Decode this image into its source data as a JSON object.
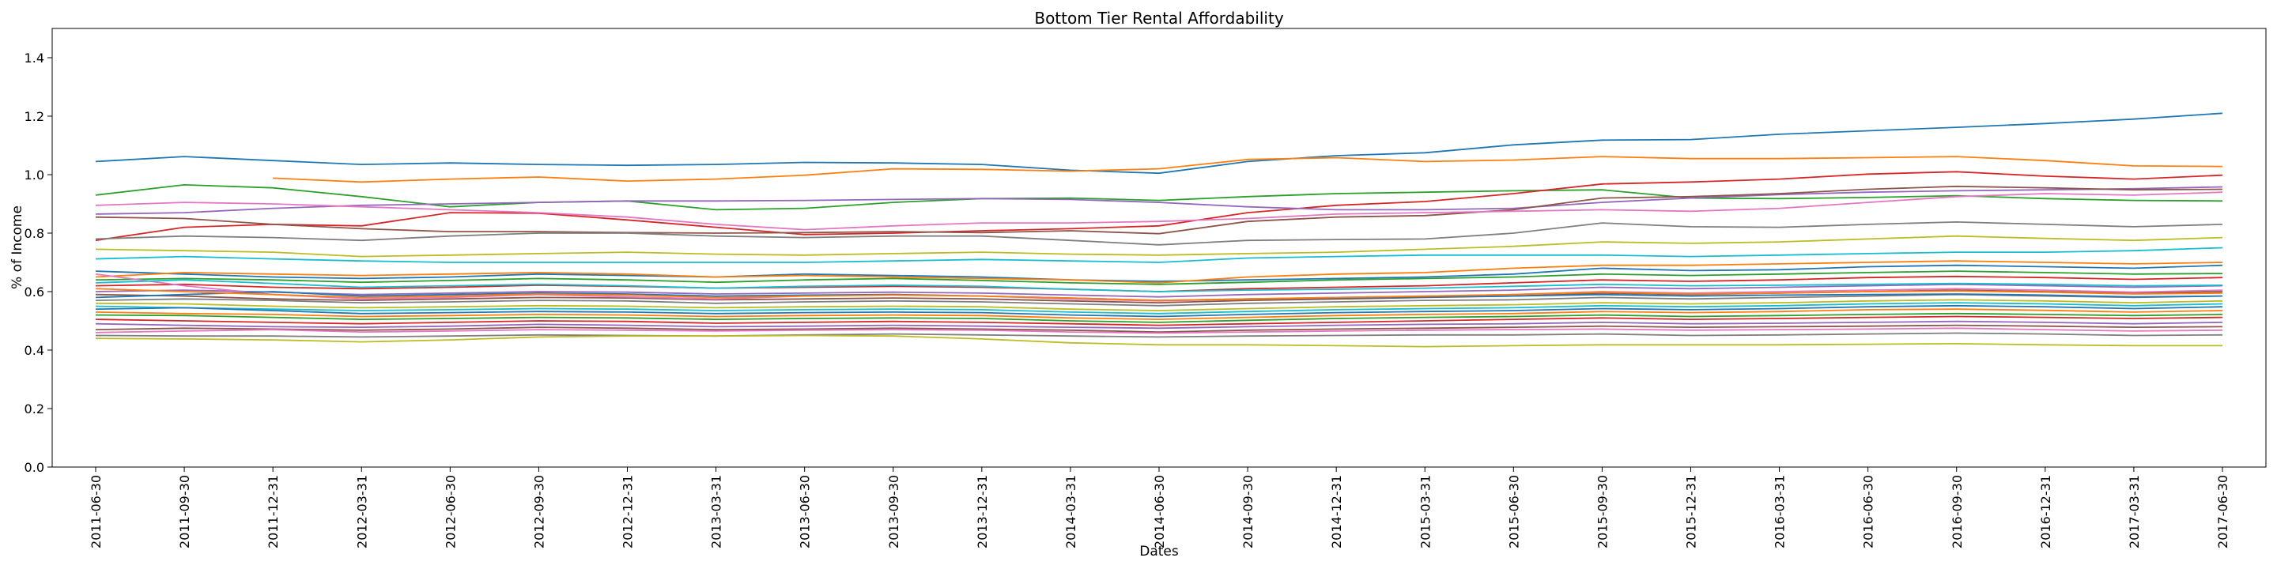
{
  "chart_data": {
    "type": "line",
    "title": "Bottom Tier Rental Affordability",
    "xlabel": "Dates",
    "ylabel": "% of Income",
    "ylim": [
      0.0,
      1.5
    ],
    "yticks": [
      0.0,
      0.2,
      0.4,
      0.6,
      0.8,
      1.0,
      1.2,
      1.4
    ],
    "ytick_labels": [
      "0.0",
      "0.2",
      "0.4",
      "0.6",
      "0.8",
      "1.0",
      "1.2",
      "1.4"
    ],
    "x": [
      "2011-06-30",
      "2011-09-30",
      "2011-12-31",
      "2012-03-31",
      "2012-06-30",
      "2012-09-30",
      "2012-12-31",
      "2013-03-31",
      "2013-06-30",
      "2013-09-30",
      "2013-12-31",
      "2014-03-31",
      "2014-06-30",
      "2014-09-30",
      "2014-12-31",
      "2015-03-31",
      "2015-06-30",
      "2015-09-30",
      "2015-12-31",
      "2016-03-31",
      "2016-06-30",
      "2016-09-30",
      "2016-12-31",
      "2017-03-31",
      "2017-06-30"
    ],
    "legend": "none",
    "grid": false,
    "series_colors": [
      "#1f77b4",
      "#ff7f0e",
      "#2ca02c",
      "#d62728",
      "#9467bd",
      "#8c564b",
      "#e377c2",
      "#7f7f7f",
      "#bcbd22",
      "#17becf"
    ],
    "series": [
      {
        "values": [
          1.045,
          1.062,
          1.048,
          1.035,
          1.04,
          1.035,
          1.032,
          1.035,
          1.042,
          1.04,
          1.035,
          1.015,
          1.005,
          1.045,
          1.065,
          1.075,
          1.102,
          1.118,
          1.12,
          1.138,
          1.15,
          1.162,
          1.175,
          1.19,
          1.21
        ]
      },
      {
        "values": [
          null,
          null,
          0.988,
          0.975,
          0.985,
          0.992,
          0.978,
          0.985,
          0.998,
          1.02,
          1.018,
          1.012,
          1.02,
          1.052,
          1.058,
          1.045,
          1.05,
          1.062,
          1.055,
          1.055,
          1.058,
          1.062,
          1.048,
          1.03,
          1.028
        ]
      },
      {
        "values": [
          0.93,
          0.965,
          0.955,
          0.925,
          0.89,
          0.905,
          0.91,
          0.88,
          0.885,
          0.905,
          0.918,
          0.92,
          0.912,
          0.925,
          0.935,
          0.94,
          0.945,
          0.948,
          0.92,
          0.918,
          0.922,
          0.928,
          0.918,
          0.912,
          0.91
        ]
      },
      {
        "values": [
          0.775,
          0.82,
          0.83,
          0.825,
          0.87,
          0.868,
          0.845,
          0.82,
          0.795,
          0.8,
          0.808,
          0.815,
          0.825,
          0.87,
          0.895,
          0.908,
          0.935,
          0.968,
          0.975,
          0.985,
          1.002,
          1.01,
          0.995,
          0.985,
          0.998
        ]
      },
      {
        "values": [
          0.865,
          0.87,
          0.885,
          0.895,
          0.9,
          0.905,
          0.91,
          0.91,
          0.912,
          0.915,
          0.918,
          0.915,
          0.905,
          0.89,
          0.88,
          0.88,
          0.885,
          0.905,
          0.92,
          0.932,
          0.94,
          0.945,
          0.948,
          0.952,
          0.958
        ]
      },
      {
        "values": [
          0.855,
          0.85,
          0.83,
          0.815,
          0.805,
          0.805,
          0.802,
          0.8,
          0.802,
          0.805,
          0.802,
          0.808,
          0.798,
          0.84,
          0.855,
          0.86,
          0.88,
          0.92,
          0.925,
          0.935,
          0.95,
          0.96,
          0.955,
          0.948,
          0.95
        ]
      },
      {
        "values": [
          0.895,
          0.905,
          0.9,
          0.89,
          0.88,
          0.87,
          0.855,
          0.83,
          0.812,
          0.825,
          0.835,
          0.835,
          0.84,
          0.85,
          0.865,
          0.87,
          0.875,
          0.88,
          0.875,
          0.885,
          0.905,
          0.925,
          0.935,
          0.93,
          0.94
        ]
      },
      {
        "values": [
          0.78,
          0.79,
          0.785,
          0.775,
          0.79,
          0.8,
          0.8,
          0.79,
          0.785,
          0.79,
          0.79,
          0.775,
          0.76,
          0.775,
          0.778,
          0.78,
          0.8,
          0.835,
          0.822,
          0.82,
          0.83,
          0.838,
          0.83,
          0.822,
          0.83
        ]
      },
      {
        "values": [
          0.745,
          0.74,
          0.735,
          0.72,
          0.725,
          0.73,
          0.735,
          0.728,
          0.725,
          0.73,
          0.735,
          0.728,
          0.725,
          0.73,
          0.735,
          0.745,
          0.755,
          0.77,
          0.765,
          0.77,
          0.78,
          0.79,
          0.782,
          0.775,
          0.785
        ]
      },
      {
        "values": [
          0.712,
          0.72,
          0.712,
          0.705,
          0.7,
          0.7,
          0.7,
          0.7,
          0.7,
          0.705,
          0.71,
          0.705,
          0.7,
          0.715,
          0.72,
          0.725,
          0.725,
          0.725,
          0.72,
          0.725,
          0.73,
          0.735,
          0.735,
          0.74,
          0.75
        ]
      },
      {
        "values": [
          0.67,
          0.66,
          0.65,
          0.645,
          0.65,
          0.66,
          0.655,
          0.65,
          0.66,
          0.655,
          0.65,
          0.64,
          0.635,
          0.64,
          0.645,
          0.65,
          0.66,
          0.68,
          0.672,
          0.675,
          0.685,
          0.69,
          0.685,
          0.68,
          0.69
        ]
      },
      {
        "values": [
          0.65,
          0.665,
          0.66,
          0.655,
          0.66,
          0.665,
          0.66,
          0.65,
          0.655,
          0.65,
          0.645,
          0.64,
          0.63,
          0.65,
          0.66,
          0.665,
          0.68,
          0.69,
          0.69,
          0.695,
          0.7,
          0.705,
          0.7,
          0.695,
          0.7
        ]
      },
      {
        "values": [
          0.64,
          0.645,
          0.64,
          0.632,
          0.638,
          0.645,
          0.64,
          0.632,
          0.64,
          0.645,
          0.638,
          0.63,
          0.625,
          0.632,
          0.64,
          0.645,
          0.65,
          0.66,
          0.655,
          0.66,
          0.665,
          0.67,
          0.665,
          0.66,
          0.662
        ]
      },
      {
        "values": [
          0.62,
          0.625,
          0.615,
          0.61,
          0.615,
          0.622,
          0.618,
          0.612,
          0.615,
          0.618,
          0.615,
          0.608,
          0.6,
          0.61,
          0.615,
          0.62,
          0.63,
          0.64,
          0.635,
          0.64,
          0.648,
          0.652,
          0.648,
          0.642,
          0.648
        ]
      },
      {
        "values": [
          0.6,
          0.605,
          0.598,
          0.59,
          0.595,
          0.6,
          0.598,
          0.592,
          0.595,
          0.598,
          0.595,
          0.588,
          0.582,
          0.59,
          0.595,
          0.6,
          0.605,
          0.615,
          0.61,
          0.615,
          0.62,
          0.625,
          0.62,
          0.615,
          0.62
        ]
      },
      {
        "values": [
          0.59,
          0.585,
          0.575,
          0.57,
          0.575,
          0.58,
          0.578,
          0.572,
          0.575,
          0.578,
          0.575,
          0.568,
          0.562,
          0.57,
          0.575,
          0.58,
          0.585,
          0.595,
          0.59,
          0.595,
          0.6,
          0.605,
          0.6,
          0.595,
          0.6
        ]
      },
      {
        "values": [
          0.66,
          0.62,
          0.59,
          0.575,
          0.58,
          0.59,
          0.582,
          0.575,
          0.585,
          0.59,
          0.585,
          0.575,
          0.568,
          0.575,
          0.58,
          0.585,
          0.59,
          0.6,
          0.595,
          0.6,
          0.605,
          0.61,
          0.605,
          0.598,
          0.605
        ]
      },
      {
        "values": [
          0.57,
          0.575,
          0.57,
          0.562,
          0.565,
          0.57,
          0.568,
          0.56,
          0.565,
          0.568,
          0.565,
          0.558,
          0.552,
          0.56,
          0.565,
          0.57,
          0.572,
          0.58,
          0.575,
          0.58,
          0.585,
          0.59,
          0.585,
          0.58,
          0.585
        ]
      },
      {
        "values": [
          0.56,
          0.558,
          0.55,
          0.545,
          0.548,
          0.552,
          0.55,
          0.545,
          0.548,
          0.55,
          0.548,
          0.54,
          0.535,
          0.542,
          0.548,
          0.552,
          0.555,
          0.562,
          0.558,
          0.562,
          0.568,
          0.572,
          0.568,
          0.562,
          0.568
        ]
      },
      {
        "values": [
          0.55,
          0.545,
          0.54,
          0.535,
          0.538,
          0.542,
          0.54,
          0.535,
          0.538,
          0.54,
          0.538,
          0.53,
          0.525,
          0.532,
          0.538,
          0.542,
          0.545,
          0.552,
          0.548,
          0.552,
          0.558,
          0.562,
          0.558,
          0.552,
          0.558
        ]
      },
      {
        "values": [
          0.54,
          0.545,
          0.535,
          0.525,
          0.528,
          0.532,
          0.53,
          0.525,
          0.528,
          0.53,
          0.528,
          0.52,
          0.515,
          0.522,
          0.528,
          0.532,
          0.535,
          0.542,
          0.538,
          0.542,
          0.548,
          0.552,
          0.548,
          0.542,
          0.548
        ]
      },
      {
        "values": [
          0.53,
          0.525,
          0.522,
          0.515,
          0.518,
          0.522,
          0.52,
          0.515,
          0.518,
          0.52,
          0.518,
          0.51,
          0.505,
          0.512,
          0.518,
          0.522,
          0.525,
          0.532,
          0.528,
          0.532,
          0.538,
          0.54,
          0.536,
          0.53,
          0.535
        ]
      },
      {
        "values": [
          0.52,
          0.518,
          0.512,
          0.505,
          0.508,
          0.512,
          0.51,
          0.505,
          0.508,
          0.51,
          0.508,
          0.5,
          0.495,
          0.502,
          0.508,
          0.512,
          0.515,
          0.52,
          0.515,
          0.518,
          0.522,
          0.525,
          0.522,
          0.518,
          0.522
        ]
      },
      {
        "values": [
          0.505,
          0.5,
          0.495,
          0.49,
          0.495,
          0.5,
          0.498,
          0.492,
          0.495,
          0.498,
          0.495,
          0.49,
          0.485,
          0.49,
          0.495,
          0.5,
          0.505,
          0.51,
          0.505,
          0.508,
          0.512,
          0.515,
          0.512,
          0.508,
          0.512
        ]
      },
      {
        "values": [
          0.49,
          0.485,
          0.48,
          0.478,
          0.482,
          0.488,
          0.485,
          0.48,
          0.482,
          0.485,
          0.482,
          0.478,
          0.475,
          0.48,
          0.485,
          0.488,
          0.49,
          0.495,
          0.49,
          0.492,
          0.495,
          0.498,
          0.495,
          0.49,
          0.495
        ]
      },
      {
        "values": [
          0.47,
          0.475,
          0.472,
          0.468,
          0.472,
          0.478,
          0.475,
          0.47,
          0.472,
          0.475,
          0.472,
          0.468,
          0.462,
          0.468,
          0.472,
          0.475,
          0.478,
          0.482,
          0.478,
          0.48,
          0.482,
          0.485,
          0.482,
          0.478,
          0.48
        ]
      },
      {
        "values": [
          0.46,
          0.465,
          0.47,
          0.462,
          0.465,
          0.47,
          0.468,
          0.465,
          0.468,
          0.47,
          0.468,
          0.462,
          0.458,
          0.462,
          0.465,
          0.468,
          0.47,
          0.472,
          0.468,
          0.47,
          0.472,
          0.475,
          0.47,
          0.465,
          0.468
        ]
      },
      {
        "values": [
          0.45,
          0.448,
          0.448,
          0.445,
          0.448,
          0.452,
          0.45,
          0.448,
          0.452,
          0.455,
          0.452,
          0.448,
          0.445,
          0.448,
          0.45,
          0.452,
          0.452,
          0.455,
          0.45,
          0.452,
          0.455,
          0.458,
          0.455,
          0.45,
          0.452
        ]
      },
      {
        "values": [
          0.44,
          0.438,
          0.435,
          0.428,
          0.435,
          0.445,
          0.448,
          0.448,
          0.45,
          0.448,
          0.438,
          0.425,
          0.418,
          0.418,
          0.415,
          0.412,
          0.415,
          0.418,
          0.418,
          0.418,
          0.42,
          0.422,
          0.418,
          0.415,
          0.415
        ]
      },
      {
        "values": [
          0.63,
          0.64,
          0.628,
          0.615,
          0.62,
          0.625,
          0.62,
          0.612,
          0.618,
          0.622,
          0.618,
          0.608,
          0.6,
          0.605,
          0.608,
          0.612,
          0.618,
          0.625,
          0.62,
          0.622,
          0.625,
          0.628,
          0.625,
          0.62,
          0.622
        ]
      },
      {
        "values": [
          0.58,
          0.59,
          0.6,
          0.585,
          0.59,
          0.595,
          0.592,
          0.585,
          0.588,
          0.59,
          0.585,
          0.578,
          0.57,
          0.575,
          0.578,
          0.582,
          0.585,
          0.59,
          0.585,
          0.588,
          0.59,
          0.592,
          0.588,
          0.582,
          0.585
        ]
      },
      {
        "values": [
          0.61,
          0.6,
          0.59,
          0.58,
          0.585,
          0.592,
          0.588,
          0.58,
          0.585,
          0.588,
          0.585,
          0.578,
          0.57,
          0.575,
          0.58,
          0.585,
          0.59,
          0.598,
          0.592,
          0.595,
          0.6,
          0.602,
          0.598,
          0.592,
          0.595
        ]
      }
    ]
  }
}
